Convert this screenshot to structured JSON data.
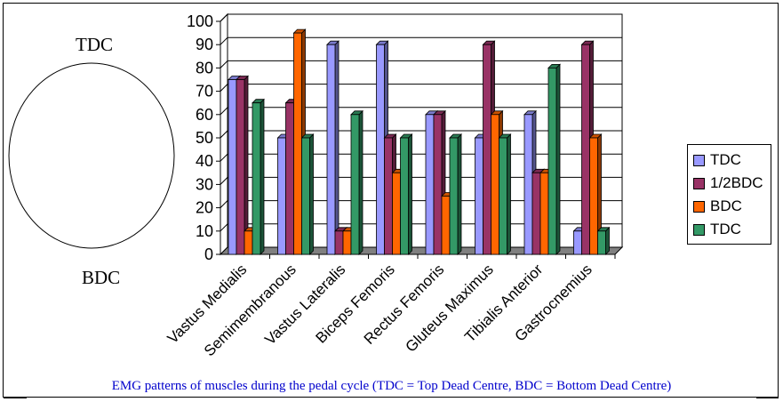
{
  "diagram": {
    "top_label": "TDC",
    "bottom_label": "BDC"
  },
  "caption": "EMG patterns of muscles during the pedal cycle (TDC = Top Dead Centre, BDC = Bottom Dead Centre)",
  "chart_data": {
    "type": "bar",
    "categories": [
      "Vastus Medialis",
      "Semimembranous",
      "Vastus Lateralis",
      "Biceps Femoris",
      "Rectus Femoris",
      "Gluteus Maximus",
      "Tibialis Anterior",
      "Gastrocnemius"
    ],
    "series": [
      {
        "name": "TDC",
        "color": "#9999ff",
        "values": [
          75,
          50,
          90,
          90,
          60,
          50,
          60,
          10
        ]
      },
      {
        "name": "1/2BDC",
        "color": "#993366",
        "values": [
          75,
          65,
          10,
          50,
          60,
          90,
          35,
          90
        ]
      },
      {
        "name": "BDC",
        "color": "#ff6600",
        "values": [
          10,
          95,
          10,
          35,
          25,
          60,
          35,
          50
        ]
      },
      {
        "name": "TDC",
        "color": "#339966",
        "values": [
          65,
          50,
          60,
          50,
          50,
          50,
          80,
          10
        ]
      }
    ],
    "ylim": [
      0,
      100
    ],
    "yticks": [
      "0",
      "10",
      "20",
      "30",
      "40",
      "50",
      "60",
      "70",
      "80",
      "90",
      "100"
    ],
    "grid": true,
    "legend_position": "right"
  }
}
